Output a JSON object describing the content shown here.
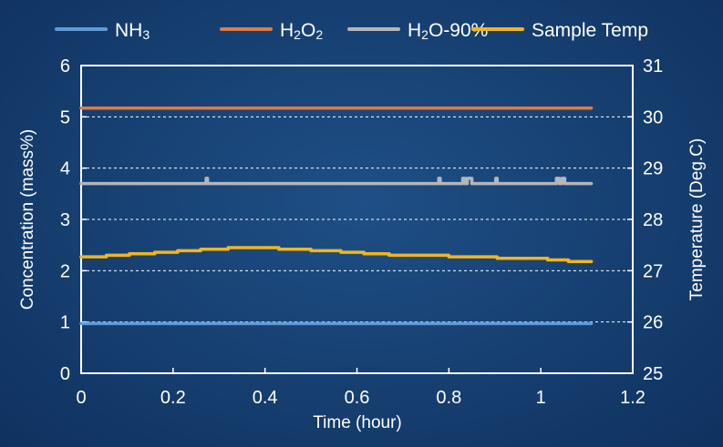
{
  "chart_data": {
    "type": "line",
    "x_axis": {
      "label": "Time (hour)",
      "range": [
        0,
        1.2
      ],
      "ticks": [
        0,
        0.2,
        0.4,
        0.6,
        0.8,
        1,
        1.2
      ],
      "tick_labels": [
        "0",
        "0.2",
        "0.4",
        "0.6",
        "0.8",
        "1",
        "1.2"
      ]
    },
    "y_axis_left": {
      "label": "Concentration (mass%)",
      "range": [
        0,
        6
      ],
      "ticks": [
        0,
        1,
        2,
        3,
        4,
        5,
        6
      ],
      "tick_labels": [
        "0",
        "1",
        "2",
        "3",
        "4",
        "5",
        "6"
      ]
    },
    "y_axis_right": {
      "label": "Temperature (Deg.C)",
      "range": [
        25,
        31
      ],
      "ticks": [
        25,
        26,
        27,
        28,
        29,
        30,
        31
      ],
      "tick_labels": [
        "25",
        "26",
        "27",
        "28",
        "29",
        "30",
        "31"
      ]
    },
    "grid": "dashed horizontal lines at right-axis ticks 26-30",
    "legend_position": "top",
    "series": [
      {
        "name": "NH3",
        "legend_base": "NH",
        "legend_sub": "3",
        "color": "#5f9bd9",
        "axis": "left",
        "x": [
          0,
          1.11
        ],
        "y": [
          0.97,
          0.97
        ]
      },
      {
        "name": "H2O2",
        "legend_base": "H",
        "legend_sub": "2",
        "legend_mid": "O",
        "legend_sub2": "2",
        "color": "#e07a45",
        "axis": "left",
        "x": [
          0,
          1.11
        ],
        "y": [
          5.17,
          5.17
        ]
      },
      {
        "name": "H2O-90%",
        "legend_base": "H",
        "legend_sub": "2",
        "legend_mid": "O-90%",
        "color": "#b4b6ba",
        "axis": "left",
        "x": [
          0,
          0.272,
          0.272,
          0.275,
          0.275,
          0.778,
          0.778,
          0.781,
          0.781,
          0.83,
          0.83,
          0.835,
          0.835,
          0.84,
          0.84,
          0.845,
          0.845,
          0.85,
          0.85,
          0.902,
          0.902,
          0.905,
          0.905,
          1.034,
          1.034,
          1.04,
          1.04,
          1.046,
          1.046,
          1.052,
          1.052,
          1.11
        ],
        "y": [
          3.7,
          3.7,
          3.8,
          3.8,
          3.7,
          3.7,
          3.8,
          3.8,
          3.7,
          3.7,
          3.8,
          3.8,
          3.7,
          3.7,
          3.8,
          3.8,
          3.8,
          3.8,
          3.7,
          3.7,
          3.8,
          3.8,
          3.7,
          3.7,
          3.8,
          3.8,
          3.7,
          3.7,
          3.8,
          3.8,
          3.7,
          3.7
        ]
      },
      {
        "name": "Sample Temp",
        "legend_base": "Sample Temp",
        "color": "#f2b51c",
        "axis": "right",
        "x": [
          0,
          0.055,
          0.055,
          0.105,
          0.105,
          0.16,
          0.16,
          0.21,
          0.21,
          0.26,
          0.26,
          0.32,
          0.32,
          0.43,
          0.43,
          0.5,
          0.5,
          0.565,
          0.565,
          0.615,
          0.615,
          0.67,
          0.67,
          0.8,
          0.8,
          0.905,
          0.905,
          1.015,
          1.015,
          1.06,
          1.06,
          1.11
        ],
        "y": [
          27.27,
          27.27,
          27.3,
          27.3,
          27.33,
          27.33,
          27.36,
          27.36,
          27.39,
          27.39,
          27.42,
          27.42,
          27.45,
          27.45,
          27.42,
          27.42,
          27.39,
          27.39,
          27.36,
          27.36,
          27.33,
          27.33,
          27.3,
          27.3,
          27.27,
          27.27,
          27.24,
          27.24,
          27.21,
          27.21,
          27.18,
          27.18
        ]
      }
    ]
  }
}
